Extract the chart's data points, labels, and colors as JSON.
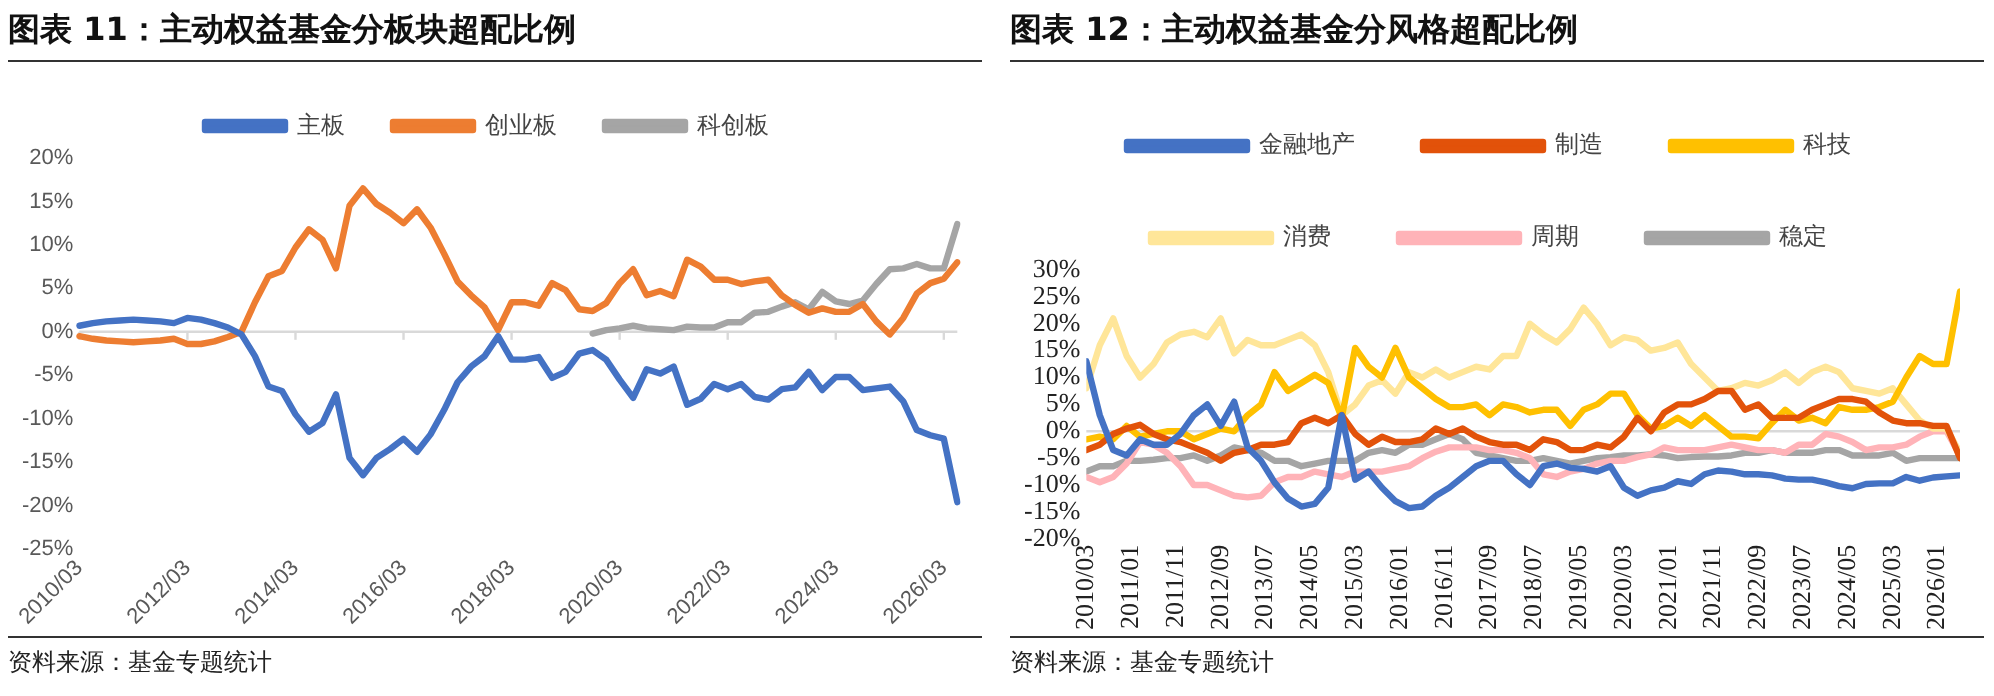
{
  "chart_data": [
    {
      "type": "line",
      "title": "图表 11：主动权益基金分板块超配比例",
      "legend": "top",
      "marker": "none",
      "categories": [
        "2010/03",
        null,
        null,
        null,
        null,
        null,
        null,
        null,
        "2012/03",
        null,
        null,
        null,
        null,
        null,
        null,
        null,
        "2014/03",
        null,
        null,
        null,
        null,
        null,
        null,
        null,
        "2016/03",
        null,
        null,
        null,
        null,
        null,
        null,
        null,
        "2018/03",
        null,
        null,
        null,
        null,
        null,
        null,
        null,
        "2020/03",
        null,
        null,
        null,
        null,
        null,
        null,
        null,
        "2022/03",
        null,
        null,
        null,
        null,
        null,
        null,
        null,
        "2024/03",
        null,
        null,
        null,
        null,
        null,
        null,
        null,
        "2026/03",
        null
      ],
      "series": [
        {
          "name": "主板",
          "color": "#4472c4",
          "values": [
            0.7,
            1.0,
            1.2,
            1.3,
            1.4,
            1.3,
            1.2,
            1.0,
            1.6,
            1.4,
            1.0,
            0.5,
            -0.3,
            -2.8,
            -6.3,
            -6.8,
            -9.5,
            -11.5,
            -10.5,
            -7.2,
            -14.5,
            -16.5,
            -14.5,
            -13.5,
            -12.3,
            -13.8,
            -11.8,
            -9,
            -5.8,
            -4,
            -2.8,
            -0.5,
            -3.2,
            -3.2,
            -2.9,
            -5.3,
            -4.6,
            -2.5,
            -2.1,
            -3.2,
            -5.5,
            -7.6,
            -4.3,
            -4.8,
            -4.0,
            -8.4,
            -7.7,
            -6.0,
            -6.6,
            -6.0,
            -7.5,
            -7.8,
            -6.6,
            -6.4,
            -4.6,
            -6.7,
            -5.2,
            -5.2,
            -6.7,
            -6.5,
            -6.3,
            -8.0,
            -11.3,
            -11.9,
            -12.3,
            -19.6
          ]
        },
        {
          "name": "创业板",
          "color": "#ed7d31",
          "values": [
            -0.5,
            -0.8,
            -1.0,
            -1.1,
            -1.2,
            -1.1,
            -1.0,
            -0.8,
            -1.4,
            -1.4,
            -1.1,
            -0.6,
            0,
            3.4,
            6.4,
            7.0,
            9.7,
            11.8,
            10.6,
            7.3,
            14.5,
            16.5,
            14.7,
            13.7,
            12.5,
            14.1,
            12.0,
            9.0,
            5.8,
            4.2,
            2.8,
            0.2,
            3.4,
            3.4,
            3.0,
            5.6,
            4.8,
            2.6,
            2.4,
            3.3,
            5.6,
            7.2,
            4.2,
            4.7,
            4.1,
            8.3,
            7.5,
            6.0,
            6.0,
            5.5,
            5.8,
            6.0,
            4.2,
            3.1,
            2.2,
            2.7,
            2.3,
            2.3,
            3.2,
            1.2,
            -0.3,
            1.6,
            4.4,
            5.6,
            6.1,
            8.0
          ]
        },
        {
          "name": "科创板",
          "color": "#a5a5a5",
          "values": [
            null,
            null,
            null,
            null,
            null,
            null,
            null,
            null,
            null,
            null,
            null,
            null,
            null,
            null,
            null,
            null,
            null,
            null,
            null,
            null,
            null,
            null,
            null,
            null,
            null,
            null,
            null,
            null,
            null,
            null,
            null,
            null,
            null,
            null,
            null,
            null,
            null,
            null,
            -0.2,
            0.2,
            0.4,
            0.7,
            0.4,
            0.3,
            0.2,
            0.6,
            0.5,
            0.5,
            1.1,
            1.1,
            2.2,
            2.3,
            2.9,
            3.4,
            2.6,
            4.6,
            3.5,
            3.2,
            3.6,
            5.5,
            7.2,
            7.3,
            7.8,
            7.3,
            7.3,
            12.4
          ]
        }
      ],
      "ylim": [
        -25,
        20
      ],
      "yticks": [
        {
          "value": -25,
          "label": "-25%"
        },
        {
          "value": -20,
          "label": "-20%"
        },
        {
          "value": -15,
          "label": "-15%"
        },
        {
          "value": -10,
          "label": "-10%"
        },
        {
          "value": -5,
          "label": "-5%"
        },
        {
          "value": 0,
          "label": "0%"
        },
        {
          "value": 5,
          "label": "5%"
        },
        {
          "value": 10,
          "label": "10%"
        },
        {
          "value": 15,
          "label": "15%"
        },
        {
          "value": 20,
          "label": "20%"
        }
      ],
      "annotations": [
        "资料来源：基金专题统计"
      ]
    },
    {
      "type": "line",
      "title": "图表 12：主动权益基金分风格超配比例",
      "legend": "top",
      "marker": "none",
      "x": [
        "2010-03",
        "2010-06",
        "2010-09",
        "2010-12",
        "2011-03",
        "2011-06",
        "2011-09",
        "2011-12",
        "2012-03",
        "2012-06",
        "2012-09",
        "2012-12",
        "2013-03",
        "2013-06",
        "2013-09",
        "2013-12",
        "2014-03",
        "2014-06",
        "2014-09",
        "2014-12",
        "2015-03",
        "2015-06",
        "2015-09",
        "2015-12",
        "2016-03",
        "2016-06",
        "2016-09",
        "2016-12",
        "2017-03",
        "2017-06",
        "2017-09",
        "2017-12",
        "2018-03",
        "2018-06",
        "2018-09",
        "2018-12",
        "2019-03",
        "2019-06",
        "2019-09",
        "2019-12",
        "2020-03",
        "2020-06",
        "2020-09",
        "2020-12",
        "2021-03",
        "2021-06",
        "2021-09",
        "2021-12",
        "2022-03",
        "2022-06",
        "2022-09",
        "2022-12",
        "2023-03",
        "2023-06",
        "2023-09",
        "2023-12",
        "2024-03",
        "2024-06",
        "2024-09",
        "2024-12",
        "2025-03",
        "2025-06",
        "2025-09",
        "2025-12",
        "2026-03",
        "2026-06"
      ],
      "series": [
        {
          "name": "金融地产",
          "color": "#4472c4",
          "values": [
            13,
            3,
            -3.5,
            -4.5,
            -1.5,
            -2.5,
            -2.5,
            -0.5,
            3,
            5,
            1,
            5.5,
            -3,
            -5.5,
            -9.5,
            -12.5,
            -14,
            -13.5,
            -10.5,
            3,
            -9,
            -7.5,
            -10.5,
            -13,
            -14.3,
            -14,
            -12,
            -10.5,
            -8.5,
            -6.5,
            -5.5,
            -5.5,
            -8,
            -10,
            -6.5,
            -6,
            -6.8,
            -7,
            -7.5,
            -6.5,
            -10.5,
            -12,
            -11,
            -10.5,
            -9.3,
            -9.8,
            -8,
            -7.3,
            -7.5,
            -8,
            -8,
            -8.2,
            -8.8,
            -9,
            -9,
            -9.5,
            -10.2,
            -10.6,
            -9.8,
            -9.7,
            -9.7,
            -8.5,
            -9.2,
            -8.6,
            -8.4,
            -8.2
          ]
        },
        {
          "name": "制造",
          "color": "#e2520a",
          "values": [
            -3.5,
            -2.5,
            -0.5,
            0.5,
            1.2,
            -0.5,
            -1.5,
            -2,
            -3,
            -4,
            -5.5,
            -4,
            -3.5,
            -2.5,
            -2.5,
            -2,
            1.5,
            2.5,
            1.5,
            3,
            -0.5,
            -2.5,
            -1,
            -2,
            -2,
            -1.5,
            0.5,
            -0.5,
            0.5,
            -1,
            -2,
            -2.5,
            -2.5,
            -3.5,
            -1.5,
            -2,
            -3.5,
            -3.5,
            -2.5,
            -3,
            -1,
            2.5,
            0,
            3.5,
            5,
            5,
            6,
            7.5,
            7.5,
            4,
            5,
            2.5,
            2.5,
            2.5,
            4,
            5,
            6,
            6,
            5.5,
            3.5,
            2,
            1.5,
            1.5,
            1,
            1,
            -5
          ]
        },
        {
          "name": "科技",
          "color": "#ffc000",
          "values": [
            -1.5,
            -1,
            -1.5,
            1,
            -1,
            -0.5,
            0,
            0,
            -1.5,
            -0.5,
            0.5,
            0,
            3,
            5,
            11,
            7.5,
            9,
            10.5,
            9,
            2.5,
            15.5,
            12,
            10,
            15.5,
            10,
            8,
            6,
            4.5,
            4.5,
            5,
            3,
            5,
            4.5,
            3.5,
            4,
            4,
            1,
            4,
            5,
            7,
            7,
            3,
            0.5,
            1,
            2.5,
            1,
            3,
            1,
            -1,
            -1,
            -1.3,
            1.5,
            4,
            2,
            2.5,
            1.5,
            4.5,
            4,
            4,
            4.5,
            5.5,
            10,
            14,
            12.5,
            12.5,
            26
          ]
        },
        {
          "name": "消费",
          "color": "#ffe699",
          "values": [
            8,
            16,
            21,
            14,
            10,
            12.5,
            16.5,
            18,
            18.5,
            17.5,
            21,
            14.5,
            17,
            16,
            16,
            17,
            18,
            16,
            11,
            3,
            5,
            8.5,
            9.5,
            7,
            11,
            10,
            11.5,
            10,
            11,
            12,
            11.5,
            14,
            14,
            20,
            18,
            16.5,
            19,
            23,
            20,
            16,
            17.5,
            17,
            15,
            15.5,
            16.5,
            12.5,
            10,
            7.5,
            8,
            9,
            8.5,
            9.5,
            11,
            9,
            11,
            12,
            11,
            8,
            7.5,
            7,
            8,
            5,
            2,
            0.5,
            0.5,
            -4
          ]
        },
        {
          "name": "周期",
          "color": "#ffb3b8",
          "values": [
            -8.5,
            -9.5,
            -8.5,
            -6,
            -2,
            -2.5,
            -4,
            -6.5,
            -10,
            -10,
            -11,
            -12,
            -12.3,
            -12,
            -9.5,
            -8.5,
            -8.5,
            -7.5,
            -8,
            -8.5,
            -7.5,
            -7.5,
            -7.5,
            -7,
            -6.5,
            -5,
            -3.8,
            -3,
            -3,
            -3,
            -3.5,
            -3.5,
            -4,
            -5,
            -8,
            -8.5,
            -7.5,
            -7,
            -6,
            -5.5,
            -5.5,
            -4.8,
            -4.3,
            -3,
            -3.5,
            -3.5,
            -3.5,
            -3,
            -2.5,
            -3,
            -3.5,
            -3.5,
            -4,
            -2.5,
            -2.5,
            -0.5,
            -1,
            -2,
            -3.5,
            -3,
            -3,
            -2.5,
            -1,
            0,
            0,
            -4.5
          ]
        },
        {
          "name": "稳定",
          "color": "#a5a5a5",
          "values": [
            -7.5,
            -6.5,
            -6.5,
            -5.5,
            -5.5,
            -5.3,
            -5,
            -5,
            -4.5,
            -5.5,
            -4.5,
            -3,
            -3.5,
            -4,
            -5.5,
            -5.5,
            -6.5,
            -6,
            -5.5,
            -5.5,
            -5.5,
            -4,
            -3.5,
            -4,
            -2.5,
            -2.5,
            -1.5,
            -0.5,
            -1.5,
            -4,
            -4.5,
            -5,
            -5.5,
            -5.5,
            -5,
            -5.5,
            -6,
            -5.5,
            -5,
            -4.8,
            -4.5,
            -4.5,
            -4.3,
            -4.5,
            -5,
            -4.8,
            -4.7,
            -4.7,
            -4.5,
            -4,
            -4,
            -3.5,
            -4,
            -4,
            -4,
            -3.5,
            -3.5,
            -4.5,
            -4.5,
            -4.5,
            -4,
            -5.5,
            -5,
            -5,
            -5,
            -5
          ]
        }
      ],
      "xlim": [
        "2010-03",
        "2026-06"
      ],
      "xticks": [
        {
          "value": "2010-03",
          "label": "2010/03"
        },
        {
          "value": "2011-01",
          "label": "2011/01"
        },
        {
          "value": "2011-11",
          "label": "2011/11"
        },
        {
          "value": "2012-09",
          "label": "2012/09"
        },
        {
          "value": "2013-07",
          "label": "2013/07"
        },
        {
          "value": "2014-05",
          "label": "2014/05"
        },
        {
          "value": "2015-03",
          "label": "2015/03"
        },
        {
          "value": "2016-01",
          "label": "2016/01"
        },
        {
          "value": "2016-11",
          "label": "2016/11"
        },
        {
          "value": "2017-09",
          "label": "2017/09"
        },
        {
          "value": "2018-07",
          "label": "2018/07"
        },
        {
          "value": "2019-05",
          "label": "2019/05"
        },
        {
          "value": "2020-03",
          "label": "2020/03"
        },
        {
          "value": "2021-01",
          "label": "2021/01"
        },
        {
          "value": "2021-11",
          "label": "2021/11"
        },
        {
          "value": "2022-09",
          "label": "2022/09"
        },
        {
          "value": "2023-07",
          "label": "2023/07"
        },
        {
          "value": "2024-05",
          "label": "2024/05"
        },
        {
          "value": "2025-03",
          "label": "2025/03"
        },
        {
          "value": "2026-01",
          "label": "2026/01"
        }
      ],
      "ylim": [
        -20,
        30
      ],
      "yticks": [
        {
          "value": -20,
          "label": "-20%"
        },
        {
          "value": -15,
          "label": "-15%"
        },
        {
          "value": -10,
          "label": "-10%"
        },
        {
          "value": -5,
          "label": "-5%"
        },
        {
          "value": 0,
          "label": "0%"
        },
        {
          "value": 5,
          "label": "5%"
        },
        {
          "value": 10,
          "label": "10%"
        },
        {
          "value": 15,
          "label": "15%"
        },
        {
          "value": 20,
          "label": "20%"
        },
        {
          "value": 25,
          "label": "25%"
        },
        {
          "value": 30,
          "label": "30%"
        }
      ],
      "annotations": [
        "资料来源：基金专题统计"
      ]
    }
  ]
}
